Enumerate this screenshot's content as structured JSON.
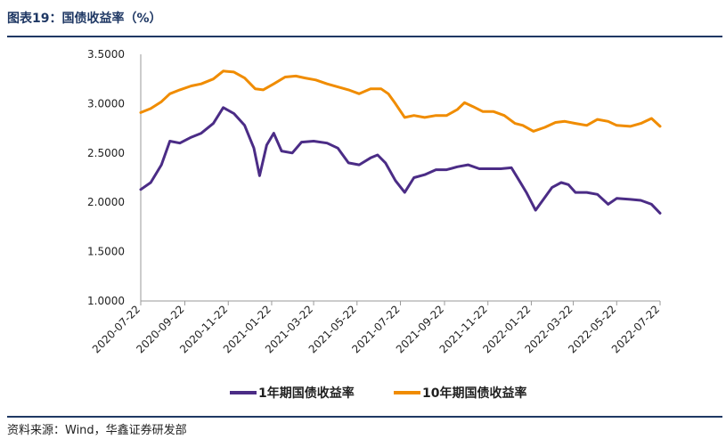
{
  "header": {
    "title": "图表19：国债收益率（%）"
  },
  "footer": {
    "source": "资料来源：Wind，华鑫证券研发部"
  },
  "chart_data": {
    "type": "line",
    "title": "国债收益率（%）",
    "xlabel": "",
    "ylabel": "",
    "ylim": [
      1.0,
      3.5
    ],
    "yticks": [
      "1.0000",
      "1.5000",
      "2.0000",
      "2.5000",
      "3.0000",
      "3.5000"
    ],
    "x": [
      "2020-07-22",
      "2020-09-22",
      "2020-11-22",
      "2021-01-22",
      "2021-03-22",
      "2021-05-22",
      "2021-07-22",
      "2021-09-22",
      "2021-11-22",
      "2022-01-22",
      "2022-03-22",
      "2022-05-22",
      "2022-07-22"
    ],
    "grid": false,
    "legend": "bottom",
    "series": [
      {
        "name": "1年期国债收益率",
        "color": "#4b2c86",
        "points": [
          [
            "2020-07-22",
            2.13
          ],
          [
            "2020-08-05",
            2.2
          ],
          [
            "2020-08-20",
            2.38
          ],
          [
            "2020-09-01",
            2.62
          ],
          [
            "2020-09-15",
            2.6
          ],
          [
            "2020-10-01",
            2.66
          ],
          [
            "2020-10-15",
            2.7
          ],
          [
            "2020-11-01",
            2.8
          ],
          [
            "2020-11-15",
            2.96
          ],
          [
            "2020-11-30",
            2.9
          ],
          [
            "2020-12-15",
            2.78
          ],
          [
            "2020-12-28",
            2.55
          ],
          [
            "2021-01-05",
            2.27
          ],
          [
            "2021-01-15",
            2.58
          ],
          [
            "2021-01-25",
            2.7
          ],
          [
            "2021-02-05",
            2.52
          ],
          [
            "2021-02-20",
            2.5
          ],
          [
            "2021-03-05",
            2.61
          ],
          [
            "2021-03-22",
            2.62
          ],
          [
            "2021-04-10",
            2.6
          ],
          [
            "2021-04-25",
            2.55
          ],
          [
            "2021-05-10",
            2.4
          ],
          [
            "2021-05-25",
            2.38
          ],
          [
            "2021-06-10",
            2.45
          ],
          [
            "2021-06-20",
            2.48
          ],
          [
            "2021-07-01",
            2.4
          ],
          [
            "2021-07-15",
            2.22
          ],
          [
            "2021-07-28",
            2.1
          ],
          [
            "2021-08-10",
            2.25
          ],
          [
            "2021-08-25",
            2.28
          ],
          [
            "2021-09-10",
            2.33
          ],
          [
            "2021-09-25",
            2.33
          ],
          [
            "2021-10-10",
            2.36
          ],
          [
            "2021-10-25",
            2.38
          ],
          [
            "2021-11-10",
            2.34
          ],
          [
            "2021-11-25",
            2.34
          ],
          [
            "2021-12-10",
            2.34
          ],
          [
            "2021-12-25",
            2.35
          ],
          [
            "2022-01-05",
            2.22
          ],
          [
            "2022-01-15",
            2.1
          ],
          [
            "2022-01-28",
            1.92
          ],
          [
            "2022-02-10",
            2.05
          ],
          [
            "2022-02-20",
            2.15
          ],
          [
            "2022-03-05",
            2.2
          ],
          [
            "2022-03-15",
            2.18
          ],
          [
            "2022-03-25",
            2.1
          ],
          [
            "2022-04-10",
            2.1
          ],
          [
            "2022-04-25",
            2.08
          ],
          [
            "2022-05-10",
            1.98
          ],
          [
            "2022-05-22",
            2.04
          ],
          [
            "2022-06-10",
            2.03
          ],
          [
            "2022-06-25",
            2.02
          ],
          [
            "2022-07-10",
            1.98
          ],
          [
            "2022-07-22",
            1.89
          ]
        ]
      },
      {
        "name": "10年期国债收益率",
        "color": "#f08c00",
        "points": [
          [
            "2020-07-22",
            2.91
          ],
          [
            "2020-08-05",
            2.95
          ],
          [
            "2020-08-20",
            3.02
          ],
          [
            "2020-09-01",
            3.1
          ],
          [
            "2020-09-15",
            3.14
          ],
          [
            "2020-10-01",
            3.18
          ],
          [
            "2020-10-15",
            3.2
          ],
          [
            "2020-11-01",
            3.25
          ],
          [
            "2020-11-15",
            3.33
          ],
          [
            "2020-11-30",
            3.32
          ],
          [
            "2020-12-15",
            3.26
          ],
          [
            "2020-12-30",
            3.15
          ],
          [
            "2021-01-10",
            3.14
          ],
          [
            "2021-01-25",
            3.2
          ],
          [
            "2021-02-10",
            3.27
          ],
          [
            "2021-02-25",
            3.28
          ],
          [
            "2021-03-10",
            3.26
          ],
          [
            "2021-03-25",
            3.24
          ],
          [
            "2021-04-10",
            3.2
          ],
          [
            "2021-04-25",
            3.17
          ],
          [
            "2021-05-10",
            3.14
          ],
          [
            "2021-05-25",
            3.1
          ],
          [
            "2021-06-10",
            3.15
          ],
          [
            "2021-06-25",
            3.15
          ],
          [
            "2021-07-05",
            3.1
          ],
          [
            "2021-07-15",
            3.0
          ],
          [
            "2021-07-28",
            2.86
          ],
          [
            "2021-08-10",
            2.88
          ],
          [
            "2021-08-25",
            2.86
          ],
          [
            "2021-09-10",
            2.88
          ],
          [
            "2021-09-25",
            2.88
          ],
          [
            "2021-10-10",
            2.94
          ],
          [
            "2021-10-20",
            3.01
          ],
          [
            "2021-11-01",
            2.97
          ],
          [
            "2021-11-15",
            2.92
          ],
          [
            "2021-11-30",
            2.92
          ],
          [
            "2021-12-15",
            2.88
          ],
          [
            "2021-12-30",
            2.8
          ],
          [
            "2022-01-10",
            2.78
          ],
          [
            "2022-01-25",
            2.72
          ],
          [
            "2022-02-10",
            2.76
          ],
          [
            "2022-02-25",
            2.81
          ],
          [
            "2022-03-10",
            2.82
          ],
          [
            "2022-03-25",
            2.8
          ],
          [
            "2022-04-10",
            2.78
          ],
          [
            "2022-04-25",
            2.84
          ],
          [
            "2022-05-10",
            2.82
          ],
          [
            "2022-05-22",
            2.78
          ],
          [
            "2022-06-10",
            2.77
          ],
          [
            "2022-06-25",
            2.8
          ],
          [
            "2022-07-10",
            2.85
          ],
          [
            "2022-07-22",
            2.77
          ]
        ]
      }
    ]
  }
}
